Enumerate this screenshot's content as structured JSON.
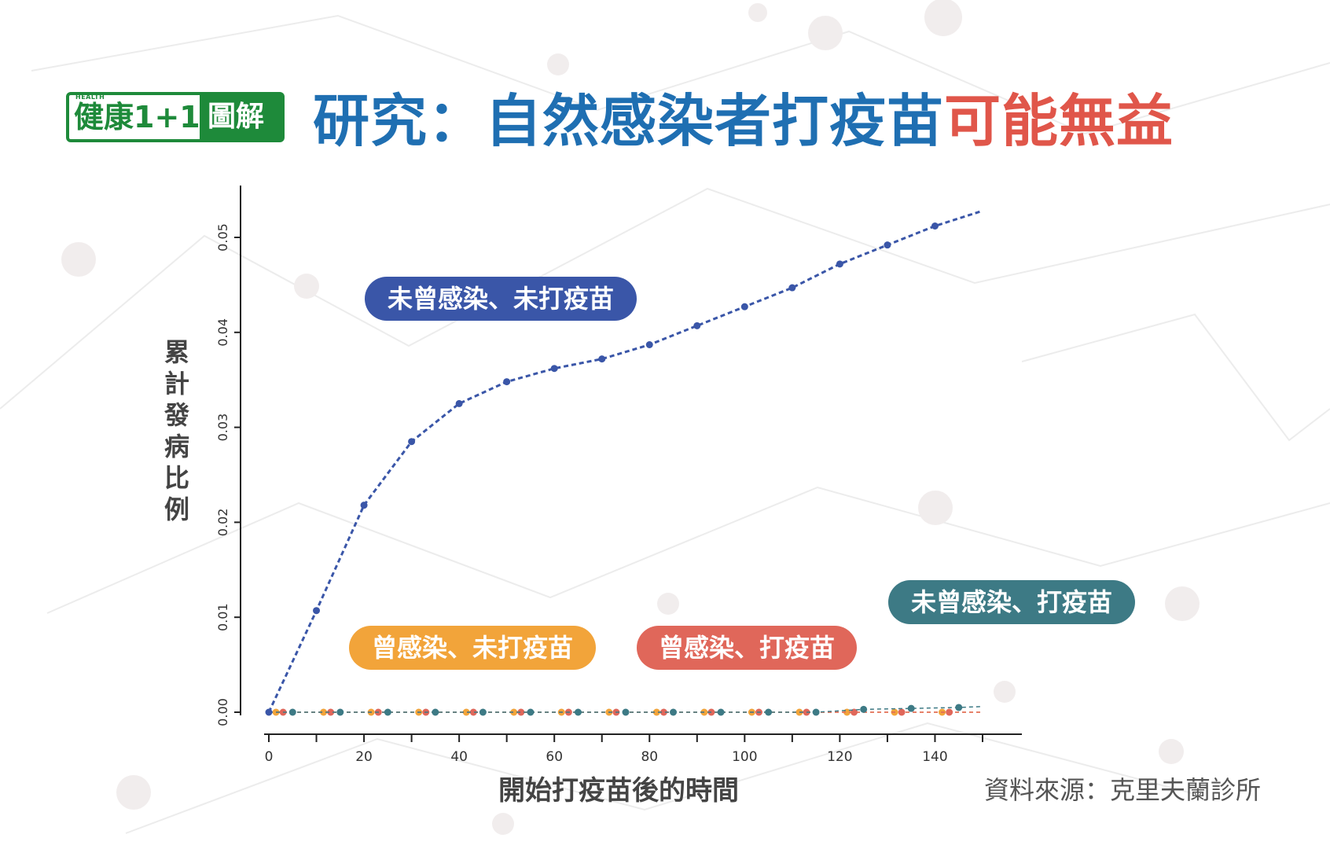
{
  "header": {
    "logo_small": "HEALTH",
    "logo_main": "健康1+1",
    "logo_tag": "圖解",
    "title_part1": "研究：自然感染者打疫苗",
    "title_part2": "可能無益"
  },
  "colors": {
    "blue_title": "#1f6fb2",
    "red_title": "#e0564a",
    "logo_green": "#1e8a3a",
    "series_unvaccinated_uninfected": "#3a56a8",
    "series_infected_unvaccinated": "#f2a43a",
    "series_infected_vaccinated": "#e0675a",
    "series_uninfected_vaccinated": "#3d7a85"
  },
  "chart_data": {
    "type": "line",
    "xlabel": "開始打疫苗後的時間",
    "ylabel": "累計發病比例",
    "xlim": [
      0,
      150
    ],
    "ylim": [
      0,
      0.055
    ],
    "x_ticks": [
      "0",
      "20",
      "40",
      "60",
      "80",
      "100",
      "120",
      "140"
    ],
    "y_ticks": [
      "0.00",
      "0.01",
      "0.02",
      "0.03",
      "0.04",
      "0.05"
    ],
    "grid": false,
    "series": [
      {
        "name": "未曾感染、未打疫苗",
        "x": [
          0,
          10,
          20,
          30,
          40,
          50,
          60,
          70,
          80,
          90,
          100,
          110,
          120,
          130,
          140,
          150
        ],
        "y": [
          0,
          0.0107,
          0.0218,
          0.0285,
          0.0325,
          0.0348,
          0.0362,
          0.0372,
          0.0387,
          0.0407,
          0.0427,
          0.0447,
          0.0472,
          0.0492,
          0.0512,
          0.0528
        ]
      },
      {
        "name": "曾感染、未打疫苗",
        "x": [
          0,
          1.5,
          11.5,
          21.5,
          31.5,
          41.5,
          51.5,
          61.5,
          71.5,
          81.5,
          91.5,
          101.5,
          111.5,
          121.5,
          131.5,
          141.5,
          150
        ],
        "y": [
          0,
          0,
          0,
          0,
          0,
          0,
          0,
          0,
          0,
          0,
          0,
          0,
          0,
          0,
          0,
          0,
          0
        ]
      },
      {
        "name": "曾感染、打疫苗",
        "x": [
          0,
          3,
          13,
          23,
          33,
          43,
          53,
          63,
          73,
          83,
          93,
          103,
          113,
          123,
          133,
          143,
          150
        ],
        "y": [
          0,
          0,
          0,
          0,
          0,
          0,
          0,
          0,
          0,
          0,
          0,
          0,
          0,
          0,
          0,
          0,
          0
        ]
      },
      {
        "name": "未曾感染、打疫苗",
        "x": [
          0,
          5,
          15,
          25,
          35,
          45,
          55,
          65,
          75,
          85,
          95,
          105,
          115,
          125,
          135,
          145,
          150
        ],
        "y": [
          0,
          0,
          0,
          0,
          0,
          0,
          0,
          0,
          0,
          0,
          0,
          0,
          0,
          0.0003,
          0.0004,
          0.0005,
          0.0006
        ]
      }
    ]
  },
  "source_label": "資料來源：克里夫蘭診所"
}
